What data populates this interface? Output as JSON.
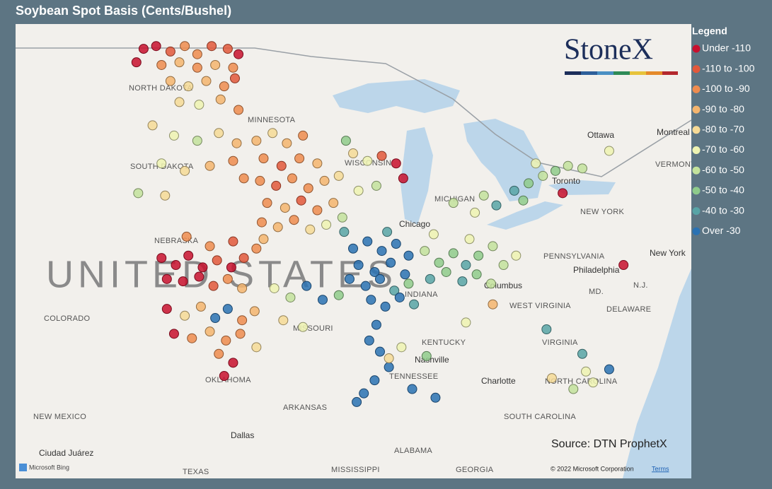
{
  "header": {
    "title": "Soybean Spot Basis (Cents/Bushel)"
  },
  "map": {
    "labels": [
      "NORTH DAKOTA",
      "MINNESOTA",
      "SOUTH DAKOTA",
      "NEBRASKA",
      "UNITED STATES",
      "COLORADO",
      "MISSOURI",
      "KENTUCKY",
      "TENNESSEE",
      "Nashville",
      "OKLAHOMA",
      "ARKANSAS",
      "NEW MEXICO",
      "Dallas",
      "TEXAS",
      "MISSISSIPPI",
      "ALABAMA",
      "GEORGIA",
      "SOUTH CAROLINA",
      "NORTH CAROLINA",
      "Charlotte",
      "VIRGINIA",
      "WEST VIRGINIA",
      "Columbus",
      "PENNSYLVANIA",
      "Philadelphia",
      "NEW YORK",
      "New York",
      "Ottawa",
      "Montreal",
      "VERMONT",
      "Chicago",
      "INDIANA",
      "DELAWARE",
      "MD.",
      "N.J.",
      "Ciudad Juárez",
      "MICHIGAN",
      "WISCONSIN",
      "Toronto"
    ],
    "logo": "StoneX",
    "source": "Source: DTN ProphetX",
    "provider": "Microsoft Bing",
    "copyright": "© 2022 Microsoft Corporation",
    "terms": "Terms"
  },
  "legend": {
    "title": "Legend",
    "entries": [
      {
        "label": "Under -110",
        "color": "#c8102e"
      },
      {
        "label": "-110 to -100",
        "color": "#e2583b"
      },
      {
        "label": "-100 to -90",
        "color": "#ef8c4f"
      },
      {
        "label": "-90 to -80",
        "color": "#f5b56e"
      },
      {
        "label": "-80 to -70",
        "color": "#f6da96"
      },
      {
        "label": "-70 to -60",
        "color": "#eef3b2"
      },
      {
        "label": "-60 to -50",
        "color": "#c3e29c"
      },
      {
        "label": "-50 to -40",
        "color": "#8fcb8b"
      },
      {
        "label": "-40 to -30",
        "color": "#58a4a6"
      },
      {
        "label": "Over -30",
        "color": "#2a72b3"
      }
    ]
  },
  "points": [
    [
      -102.5,
      48.8,
      0
    ],
    [
      -101.8,
      48.9,
      0
    ],
    [
      -101,
      48.7,
      1
    ],
    [
      -100.2,
      48.9,
      2
    ],
    [
      -99.5,
      48.6,
      2
    ],
    [
      -98.7,
      48.9,
      1
    ],
    [
      -97.8,
      48.8,
      1
    ],
    [
      -97.2,
      48.6,
      0
    ],
    [
      -102.9,
      48.3,
      0
    ],
    [
      -101.5,
      48.2,
      2
    ],
    [
      -100.5,
      48.3,
      3
    ],
    [
      -99.5,
      48.1,
      2
    ],
    [
      -98.5,
      48.2,
      3
    ],
    [
      -97.5,
      48.1,
      2
    ],
    [
      -101,
      47.6,
      3
    ],
    [
      -100,
      47.4,
      4
    ],
    [
      -99,
      47.6,
      3
    ],
    [
      -98,
      47.4,
      2
    ],
    [
      -97.4,
      47.7,
      1
    ],
    [
      -100.5,
      46.8,
      4
    ],
    [
      -99.4,
      46.7,
      5
    ],
    [
      -98.2,
      46.9,
      3
    ],
    [
      -97.2,
      46.5,
      2
    ],
    [
      -102,
      45.9,
      4
    ],
    [
      -100.8,
      45.5,
      5
    ],
    [
      -99.5,
      45.3,
      6
    ],
    [
      -98.3,
      45.6,
      4
    ],
    [
      -97.3,
      45.2,
      3
    ],
    [
      -101.5,
      44.4,
      5
    ],
    [
      -100.2,
      44.1,
      4
    ],
    [
      -98.8,
      44.3,
      3
    ],
    [
      -97.5,
      44.5,
      2
    ],
    [
      -96.9,
      43.8,
      2
    ],
    [
      -102.8,
      43.2,
      6
    ],
    [
      -101.3,
      43.1,
      4
    ],
    [
      -96.2,
      45.3,
      3
    ],
    [
      -95.3,
      45.6,
      4
    ],
    [
      -94.5,
      45.2,
      3
    ],
    [
      -93.6,
      45.5,
      2
    ],
    [
      -95.8,
      44.6,
      2
    ],
    [
      -94.8,
      44.3,
      1
    ],
    [
      -93.8,
      44.6,
      2
    ],
    [
      -92.8,
      44.4,
      3
    ],
    [
      -96,
      43.7,
      2
    ],
    [
      -95.1,
      43.5,
      1
    ],
    [
      -94.2,
      43.8,
      2
    ],
    [
      -93.3,
      43.4,
      2
    ],
    [
      -92.4,
      43.7,
      3
    ],
    [
      -91.6,
      43.9,
      4
    ],
    [
      -95.6,
      42.8,
      2
    ],
    [
      -94.6,
      42.6,
      3
    ],
    [
      -93.7,
      42.9,
      1
    ],
    [
      -92.8,
      42.5,
      2
    ],
    [
      -91.9,
      42.8,
      3
    ],
    [
      -95.9,
      42,
      2
    ],
    [
      -95,
      41.8,
      3
    ],
    [
      -94.1,
      42.1,
      2
    ],
    [
      -93.2,
      41.7,
      4
    ],
    [
      -92.3,
      41.9,
      5
    ],
    [
      -91.4,
      42.2,
      6
    ],
    [
      -90.8,
      44.8,
      4
    ],
    [
      -90,
      44.5,
      5
    ],
    [
      -89.2,
      44.7,
      1
    ],
    [
      -88.4,
      44.4,
      0
    ],
    [
      -88,
      43.8,
      0
    ],
    [
      -89.5,
      43.5,
      6
    ],
    [
      -90.5,
      43.3,
      5
    ],
    [
      -91.2,
      45.3,
      7
    ],
    [
      -101.5,
      40.5,
      0
    ],
    [
      -100.7,
      40.2,
      0
    ],
    [
      -100,
      40.6,
      0
    ],
    [
      -99.2,
      40.1,
      0
    ],
    [
      -98.4,
      40.4,
      1
    ],
    [
      -97.6,
      40.1,
      0
    ],
    [
      -96.9,
      40.5,
      1
    ],
    [
      -101.2,
      39.6,
      0
    ],
    [
      -100.3,
      39.5,
      0
    ],
    [
      -99.4,
      39.7,
      0
    ],
    [
      -98.6,
      39.3,
      1
    ],
    [
      -97.8,
      39.6,
      2
    ],
    [
      -97,
      39.2,
      3
    ],
    [
      -96.2,
      40.9,
      2
    ],
    [
      -95.8,
      41.3,
      3
    ],
    [
      -97.5,
      41.2,
      1
    ],
    [
      -98.8,
      41,
      2
    ],
    [
      -100.1,
      41.4,
      2
    ],
    [
      -101.2,
      38.3,
      0
    ],
    [
      -100.2,
      38,
      4
    ],
    [
      -99.3,
      38.4,
      3
    ],
    [
      -98.5,
      37.9,
      9
    ],
    [
      -97.8,
      38.3,
      9
    ],
    [
      -97,
      37.8,
      2
    ],
    [
      -96.3,
      38.2,
      3
    ],
    [
      -100.8,
      37.2,
      0
    ],
    [
      -99.8,
      37,
      2
    ],
    [
      -98.8,
      37.3,
      3
    ],
    [
      -97.9,
      36.9,
      2
    ],
    [
      -97.1,
      37.2,
      2
    ],
    [
      -98.3,
      36.3,
      2
    ],
    [
      -97.5,
      35.9,
      0
    ],
    [
      -98,
      35.3,
      0
    ],
    [
      -96.2,
      36.6,
      4
    ],
    [
      -95.2,
      39.2,
      5
    ],
    [
      -94.3,
      38.8,
      6
    ],
    [
      -93.4,
      39.3,
      9
    ],
    [
      -92.5,
      38.7,
      9
    ],
    [
      -91.6,
      38.9,
      7
    ],
    [
      -94.7,
      37.8,
      4
    ],
    [
      -93.6,
      37.5,
      5
    ],
    [
      -90.8,
      40.9,
      9
    ],
    [
      -90,
      41.2,
      9
    ],
    [
      -89.2,
      40.8,
      9
    ],
    [
      -88.4,
      41.1,
      9
    ],
    [
      -87.7,
      40.6,
      9
    ],
    [
      -90.5,
      40.2,
      9
    ],
    [
      -89.6,
      39.9,
      9
    ],
    [
      -88.7,
      40.3,
      9
    ],
    [
      -87.9,
      39.8,
      9
    ],
    [
      -91,
      39.6,
      9
    ],
    [
      -90.1,
      39.3,
      9
    ],
    [
      -89.3,
      39.6,
      9
    ],
    [
      -88.5,
      39.1,
      8
    ],
    [
      -87.7,
      39.4,
      7
    ],
    [
      -89.8,
      38.7,
      9
    ],
    [
      -89,
      38.4,
      9
    ],
    [
      -88.2,
      38.8,
      9
    ],
    [
      -87.4,
      38.5,
      8
    ],
    [
      -91.3,
      41.6,
      8
    ],
    [
      -88.9,
      41.6,
      8
    ],
    [
      -89.5,
      37.6,
      9
    ],
    [
      -89.9,
      36.9,
      9
    ],
    [
      -89.3,
      36.4,
      9
    ],
    [
      -88.8,
      35.7,
      9
    ],
    [
      -89.6,
      35.1,
      9
    ],
    [
      -90.2,
      34.5,
      9
    ],
    [
      -90.6,
      34.1,
      9
    ],
    [
      -87.5,
      34.7,
      9
    ],
    [
      -86.2,
      34.3,
      9
    ],
    [
      -78,
      36.3,
      8
    ],
    [
      -76.5,
      35.6,
      9
    ],
    [
      -80,
      37.4,
      8
    ],
    [
      -86.8,
      40.8,
      6
    ],
    [
      -86,
      40.3,
      7
    ],
    [
      -85.2,
      40.7,
      7
    ],
    [
      -84.5,
      40.2,
      8
    ],
    [
      -83.8,
      40.6,
      7
    ],
    [
      -83,
      41,
      6
    ],
    [
      -86.5,
      39.6,
      8
    ],
    [
      -85.6,
      39.9,
      7
    ],
    [
      -84.7,
      39.5,
      8
    ],
    [
      -83.9,
      39.8,
      7
    ],
    [
      -83.1,
      39.4,
      6
    ],
    [
      -82.4,
      40.2,
      6
    ],
    [
      -81.7,
      40.6,
      5
    ],
    [
      -86.3,
      41.5,
      5
    ],
    [
      -84.3,
      41.3,
      5
    ],
    [
      -84,
      42.4,
      5
    ],
    [
      -85.2,
      42.8,
      6
    ],
    [
      -83.5,
      43.1,
      6
    ],
    [
      -82.8,
      42.7,
      8
    ],
    [
      -81.8,
      43.3,
      8
    ],
    [
      -81,
      43.6,
      7
    ],
    [
      -80.2,
      43.9,
      6
    ],
    [
      -79.5,
      44.1,
      7
    ],
    [
      -78.8,
      44.3,
      6
    ],
    [
      -78,
      44.2,
      6
    ],
    [
      -80.6,
      44.4,
      5
    ],
    [
      -79.1,
      43.2,
      0
    ],
    [
      -81.3,
      42.9,
      7
    ],
    [
      -76.5,
      44.9,
      5
    ],
    [
      -77.8,
      35.5,
      5
    ],
    [
      -77.4,
      35,
      5
    ],
    [
      -78.5,
      34.7,
      6
    ],
    [
      -79.7,
      35.2,
      4
    ],
    [
      -75.7,
      40.2,
      0
    ],
    [
      -88.8,
      36.1,
      4
    ],
    [
      -88.1,
      36.6,
      5
    ],
    [
      -86.7,
      36.2,
      7
    ],
    [
      -84.5,
      37.7,
      5
    ],
    [
      -83,
      38.5,
      3
    ]
  ]
}
